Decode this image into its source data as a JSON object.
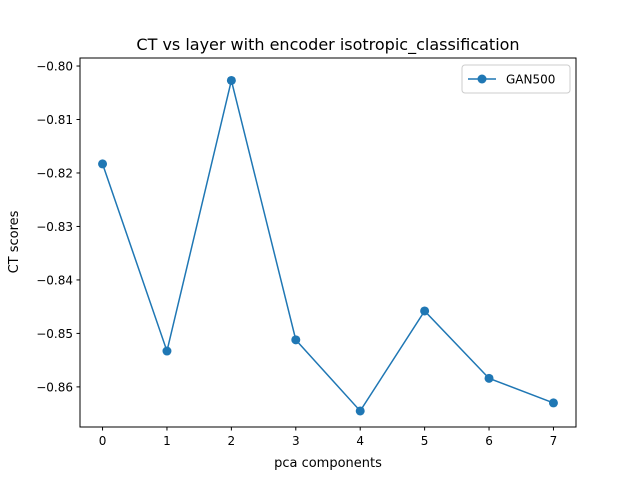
{
  "chart_data": {
    "type": "line",
    "title": "CT vs layer with encoder isotropic_classification",
    "xlabel": "pca components",
    "ylabel": "CT scores",
    "x": [
      0,
      1,
      2,
      3,
      4,
      5,
      6,
      7
    ],
    "xticks": [
      "0",
      "1",
      "2",
      "3",
      "4",
      "5",
      "6",
      "7"
    ],
    "yticks": [
      -0.8,
      -0.81,
      -0.82,
      -0.83,
      -0.84,
      -0.85,
      -0.86
    ],
    "ytick_labels": [
      "−0.80",
      "−0.81",
      "−0.82",
      "−0.83",
      "−0.84",
      "−0.85",
      "−0.86"
    ],
    "xlim": [
      -0.35,
      7.35
    ],
    "ylim": [
      -0.8675,
      -0.7985
    ],
    "grid": false,
    "legend_position": "top-right",
    "series": [
      {
        "name": "GAN500",
        "color": "#1f77b4",
        "marker": "circle",
        "values": [
          -0.8183,
          -0.8533,
          -0.8027,
          -0.8512,
          -0.8645,
          -0.8458,
          -0.8584,
          -0.863
        ]
      }
    ]
  }
}
